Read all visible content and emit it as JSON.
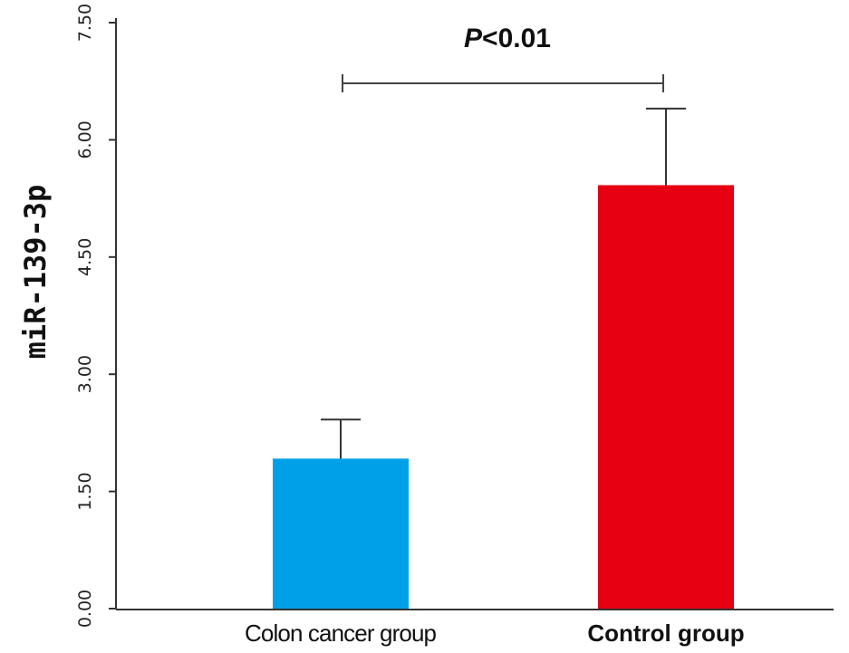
{
  "chart_data": {
    "type": "bar",
    "categories": [
      "Colon cancer group",
      "Control group"
    ],
    "values": [
      1.92,
      5.42
    ],
    "error_upper": [
      2.42,
      6.4
    ],
    "colors": [
      "#00a0e9",
      "#e60012"
    ],
    "ylabel": "miR-139-3p",
    "ylim": [
      0,
      7.5
    ],
    "yticks": [
      "0.00",
      "1.50",
      "3.00",
      "4.50",
      "6.00",
      "7.50"
    ],
    "annotation": {
      "text_italic": "P",
      "text_rest": "<0.01"
    },
    "grid": false
  }
}
